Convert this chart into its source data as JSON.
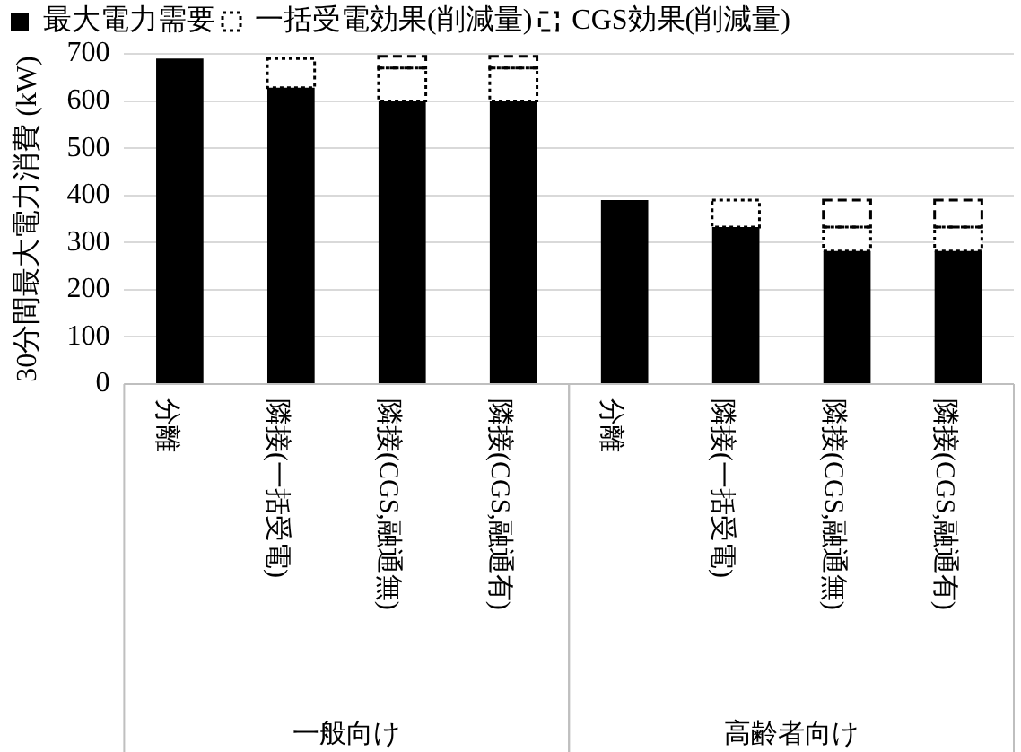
{
  "chart_data": {
    "type": "bar",
    "stacked": true,
    "ylabel": "30分間最大電力消費 (kW)",
    "categories": [
      "分離",
      "隣接(一括受電)",
      "隣接(CGS,融通無)",
      "隣接(CGS,融通有)",
      "分離",
      "隣接(一括受電)",
      "隣接(CGS,融通無)",
      "隣接(CGS,融通有)"
    ],
    "series": [
      {
        "name": "最大電力需要",
        "color": "#000000",
        "values": [
          690,
          628,
          600,
          600,
          390,
          333,
          282,
          282
        ]
      },
      {
        "name": "一括受電効果(削減量)",
        "color": "#000000",
        "line_style": "dotted",
        "values": [
          0,
          62,
          70,
          70,
          0,
          57,
          51,
          51
        ]
      },
      {
        "name": "CGS効果(削減量)",
        "color": "#000000",
        "line_style": "dashed",
        "values": [
          0,
          0,
          25,
          25,
          0,
          0,
          57,
          57
        ]
      }
    ],
    "ylim": [
      0,
      700
    ],
    "yticks": [
      0,
      100,
      200,
      300,
      400,
      500,
      600,
      700
    ],
    "grid": "y",
    "legend": "top",
    "annotations": [
      "一般向け",
      "高齢者向け"
    ]
  }
}
